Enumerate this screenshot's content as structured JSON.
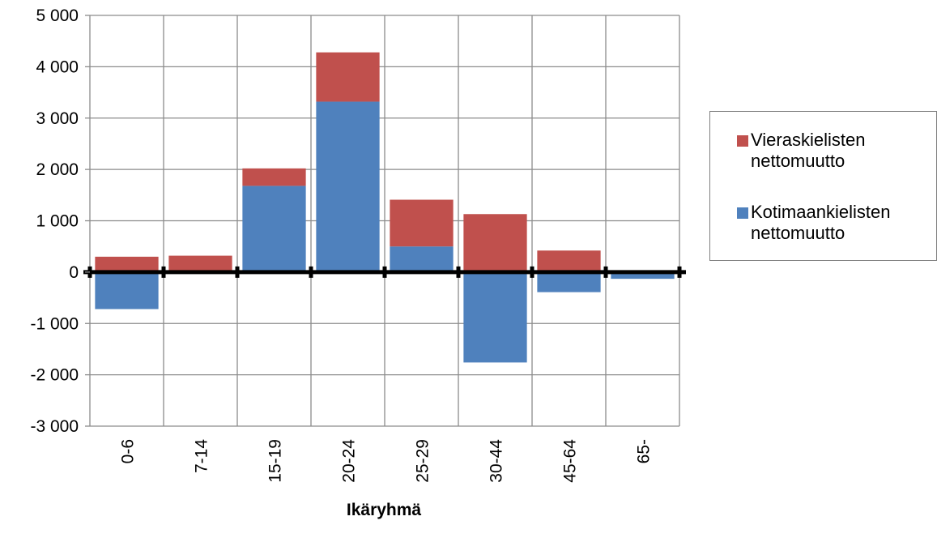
{
  "chart_data": {
    "type": "bar",
    "stacked": true,
    "xlabel": "Ikäryhmä",
    "ylabel": "",
    "ylim": [
      -3000,
      5000
    ],
    "yticks": [
      5000,
      4000,
      3000,
      2000,
      1000,
      0,
      -1000,
      -2000,
      -3000
    ],
    "ytick_labels": [
      "5 000",
      "4 000",
      "3 000",
      "2 000",
      "1 000",
      "0",
      "-1 000",
      "-2 000",
      "-3 000"
    ],
    "categories": [
      "0-6",
      "7-14",
      "15-19",
      "20-24",
      "25-29",
      "30-44",
      "45-64",
      "65-"
    ],
    "series": [
      {
        "name": "Kotimaankielisten nettomuutto",
        "color": "#4f81bd",
        "values": [
          -720,
          0,
          1680,
          3320,
          500,
          -1760,
          -390,
          -130
        ]
      },
      {
        "name": "Vieraskielisten nettomuutto",
        "color": "#c0504d",
        "values": [
          300,
          320,
          340,
          960,
          910,
          1130,
          420,
          0
        ]
      }
    ],
    "grid": true,
    "legend_position": "right"
  },
  "legend": [
    {
      "line1": "Vieraskielisten",
      "line2": "nettomuutto",
      "color": "#c0504d"
    },
    {
      "line1": "Kotimaankielisten",
      "line2": "nettomuutto",
      "color": "#4f81bd"
    }
  ]
}
